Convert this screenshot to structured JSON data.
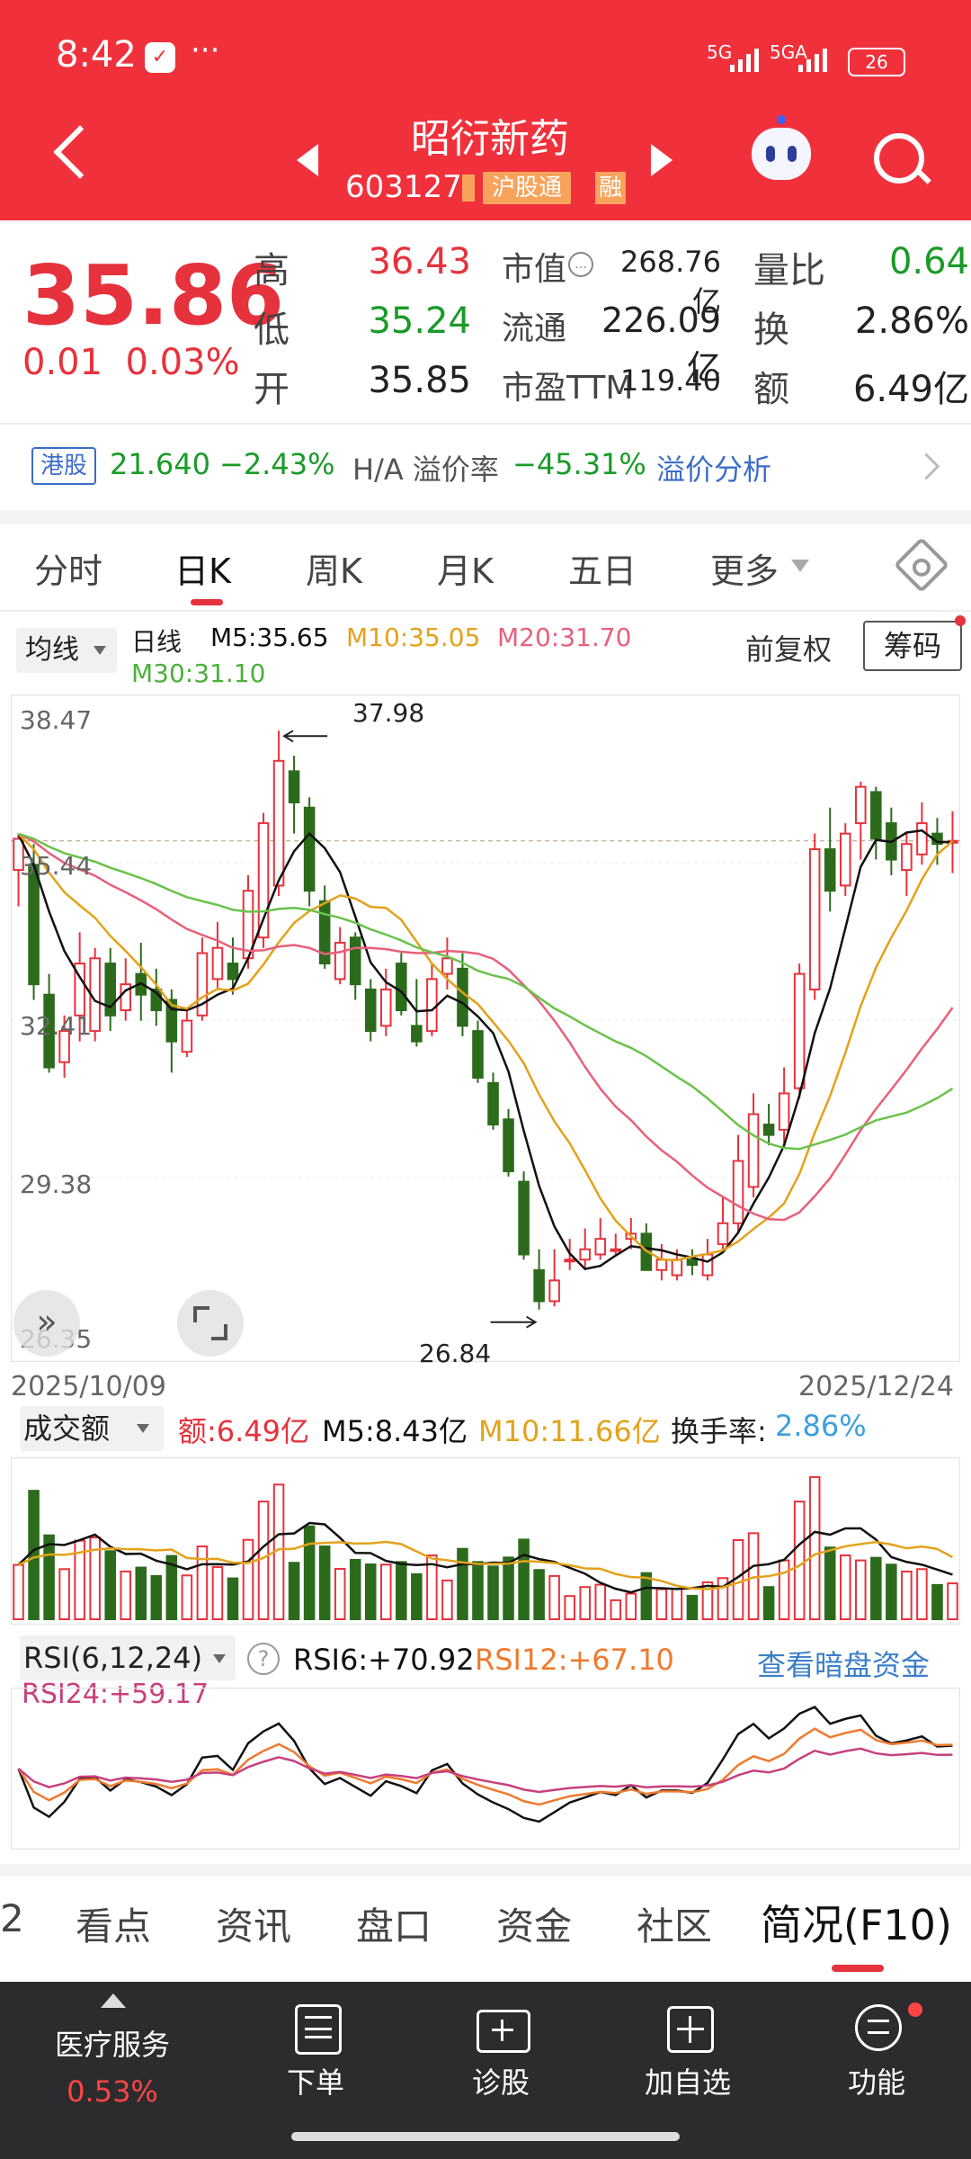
{
  "status_bar": {
    "time": "8:42",
    "dots": "···",
    "net1": "5G",
    "net2": "5GA",
    "battery": "26"
  },
  "header": {
    "stock_name": "昭衍新药",
    "stock_code": "603127",
    "badge_hgt": "沪股通",
    "badge_rong": "融"
  },
  "quote": {
    "price": "35.86",
    "change": "0.01",
    "change_pct": "0.03%",
    "high_label": "高",
    "high": "36.43",
    "low_label": "低",
    "low": "35.24",
    "open_label": "开",
    "open": "35.85",
    "mktcap_label": "市值",
    "mktcap": "268.76亿",
    "float_label": "流通",
    "float": "226.09亿",
    "pe_label": "市盈TTM",
    "pe": "119.40",
    "volratio_label": "量比",
    "volratio": "0.64",
    "turnover_label": "换",
    "turnover": "2.86%",
    "amount_label": "额",
    "amount": "6.49亿"
  },
  "hk": {
    "tag": "港股",
    "price": "21.640",
    "change": "−2.43%",
    "ha_label": "H/A 溢价率",
    "ha_value": "−45.31%",
    "link": "溢价分析"
  },
  "period_tabs": [
    "分时",
    "日K",
    "周K",
    "月K",
    "五日",
    "更多"
  ],
  "ma_row": {
    "select": "均线",
    "period": "日线",
    "m5": "M5:35.65",
    "m10": "M10:35.05",
    "m20": "M20:31.70",
    "m30": "M30:31.10",
    "fq": "前复权",
    "chip": "筹码"
  },
  "kchart_labels": {
    "y_top": "38.47",
    "y_2": "35.44",
    "y_3": "32.41",
    "y_4": "29.38",
    "y_bottom": "26.35",
    "high_mark": "37.98",
    "low_mark": "26.84",
    "date_start": "2025/10/09",
    "date_end": "2025/12/24"
  },
  "volume": {
    "select": "成交额",
    "amt": "额:6.49亿",
    "m5": "M5:8.43亿",
    "m10": "M10:11.66亿",
    "turnover": "换手率:",
    "turnover_val": "2.86%"
  },
  "rsi": {
    "select": "RSI(6,12,24)",
    "help": "?",
    "rsi6": "RSI6:+70.92",
    "rsi12": "RSI12:+67.10",
    "rsi24": "RSI24:+59.17",
    "link": "查看暗盘资金"
  },
  "bottom_tabs": [
    "2",
    "看点",
    "资讯",
    "盘口",
    "资金",
    "社区",
    "简况(F10)"
  ],
  "bottom_bar": {
    "sector": "医疗服务",
    "sector_pct": "0.53%",
    "order": "下单",
    "diagnose": "诊股",
    "add": "加自选",
    "func": "功能"
  },
  "colors": {
    "header": "#f0313c",
    "up": "#e6323c",
    "down": "#2d6b1c",
    "ma5": "#111111",
    "ma10": "#e3a21a",
    "ma20": "#e8607a",
    "ma30": "#6ac24a"
  },
  "chart_data": [
    {
      "type": "candlestick",
      "title": "日线",
      "x_range": [
        "2025/10/09",
        "2025/12/24"
      ],
      "ylim": [
        26.35,
        38.47
      ],
      "y_ticks": [
        38.47,
        35.44,
        32.41,
        29.38,
        26.35
      ],
      "annotations": [
        {
          "label": "37.98",
          "kind": "high"
        },
        {
          "label": "26.84",
          "kind": "low"
        }
      ],
      "candles": [
        [
          35.3,
          35.9,
          34.6,
          36.0
        ],
        [
          35.4,
          33.1,
          32.8,
          35.8
        ],
        [
          32.9,
          31.5,
          31.4,
          33.3
        ],
        [
          31.6,
          32.2,
          31.3,
          32.5
        ],
        [
          32.5,
          33.5,
          32.0,
          34.1
        ],
        [
          32.2,
          33.6,
          32.0,
          33.8
        ],
        [
          33.5,
          32.5,
          32.2,
          33.8
        ],
        [
          32.6,
          33.1,
          32.4,
          33.6
        ],
        [
          33.3,
          32.9,
          32.4,
          33.9
        ],
        [
          33.0,
          32.6,
          32.3,
          33.4
        ],
        [
          32.8,
          32.0,
          31.4,
          33.0
        ],
        [
          31.8,
          32.4,
          31.7,
          32.6
        ],
        [
          32.5,
          33.7,
          32.4,
          34.0
        ],
        [
          33.2,
          33.8,
          33.0,
          34.3
        ],
        [
          33.5,
          33.2,
          32.9,
          34.0
        ],
        [
          33.6,
          34.9,
          33.4,
          35.2
        ],
        [
          34.0,
          36.2,
          33.8,
          36.4
        ],
        [
          35.0,
          37.4,
          34.8,
          37.98
        ],
        [
          37.2,
          36.6,
          36.0,
          37.5
        ],
        [
          36.5,
          34.9,
          34.6,
          36.7
        ],
        [
          34.7,
          33.5,
          33.4,
          35.0
        ],
        [
          33.2,
          33.9,
          33.1,
          34.2
        ],
        [
          34.0,
          33.1,
          32.8,
          34.1
        ],
        [
          33.0,
          32.2,
          32.0,
          33.2
        ],
        [
          32.3,
          33.0,
          32.1,
          33.4
        ],
        [
          33.5,
          32.6,
          32.5,
          33.7
        ],
        [
          32.3,
          32.0,
          31.9,
          33.2
        ],
        [
          32.2,
          33.2,
          32.1,
          33.5
        ],
        [
          33.3,
          33.6,
          33.0,
          34.0
        ],
        [
          33.4,
          32.3,
          32.1,
          33.7
        ],
        [
          32.2,
          31.3,
          31.2,
          32.4
        ],
        [
          31.2,
          30.4,
          30.3,
          31.4
        ],
        [
          30.5,
          29.5,
          29.4,
          30.7
        ],
        [
          29.3,
          27.9,
          27.8,
          29.5
        ],
        [
          27.6,
          27.0,
          26.84,
          28.0
        ],
        [
          27.0,
          27.4,
          26.9,
          28.0
        ],
        [
          27.8,
          27.8,
          27.6,
          28.2
        ],
        [
          27.8,
          28.0,
          27.6,
          28.4
        ],
        [
          27.9,
          28.2,
          27.8,
          28.6
        ],
        [
          28.0,
          28.0,
          27.9,
          28.3
        ],
        [
          28.2,
          28.3,
          28.0,
          28.6
        ],
        [
          28.3,
          27.6,
          27.6,
          28.5
        ],
        [
          27.6,
          27.8,
          27.4,
          28.1
        ],
        [
          27.5,
          27.8,
          27.4,
          28.0
        ],
        [
          27.8,
          27.7,
          27.5,
          28.0
        ],
        [
          27.5,
          27.9,
          27.4,
          28.2
        ],
        [
          28.1,
          28.5,
          28.0,
          29.0
        ],
        [
          28.5,
          29.7,
          28.3,
          30.2
        ],
        [
          29.2,
          30.6,
          29.0,
          31.0
        ],
        [
          30.4,
          30.2,
          30.0,
          30.8
        ],
        [
          30.3,
          31.0,
          30.0,
          31.5
        ],
        [
          31.1,
          33.3,
          30.9,
          33.5
        ],
        [
          33.0,
          35.7,
          32.8,
          36.0
        ],
        [
          35.7,
          34.9,
          34.5,
          36.5
        ],
        [
          35.0,
          36.0,
          34.8,
          36.2
        ],
        [
          36.2,
          36.9,
          35.5,
          37.0
        ],
        [
          36.8,
          35.9,
          35.5,
          36.9
        ],
        [
          36.2,
          35.5,
          35.2,
          36.5
        ],
        [
          35.3,
          35.8,
          34.8,
          36.0
        ],
        [
          35.6,
          36.2,
          35.4,
          36.6
        ],
        [
          36.0,
          35.8,
          35.4,
          36.3
        ],
        [
          35.85,
          35.86,
          35.24,
          36.43
        ]
      ],
      "reference_price": 35.86
    },
    {
      "type": "bar",
      "title": "成交额",
      "series": [
        {
          "name": "额",
          "last_value": "6.49亿"
        },
        {
          "name": "M5",
          "last_value": "8.43亿"
        },
        {
          "name": "M10",
          "last_value": "11.66亿"
        }
      ]
    },
    {
      "type": "line",
      "title": "RSI(6,12,24)",
      "ylim": [
        0,
        100
      ],
      "series": [
        {
          "name": "RSI6",
          "last_value": 70.92
        },
        {
          "name": "RSI12",
          "last_value": 67.1
        },
        {
          "name": "RSI24",
          "last_value": 59.17
        }
      ]
    }
  ]
}
